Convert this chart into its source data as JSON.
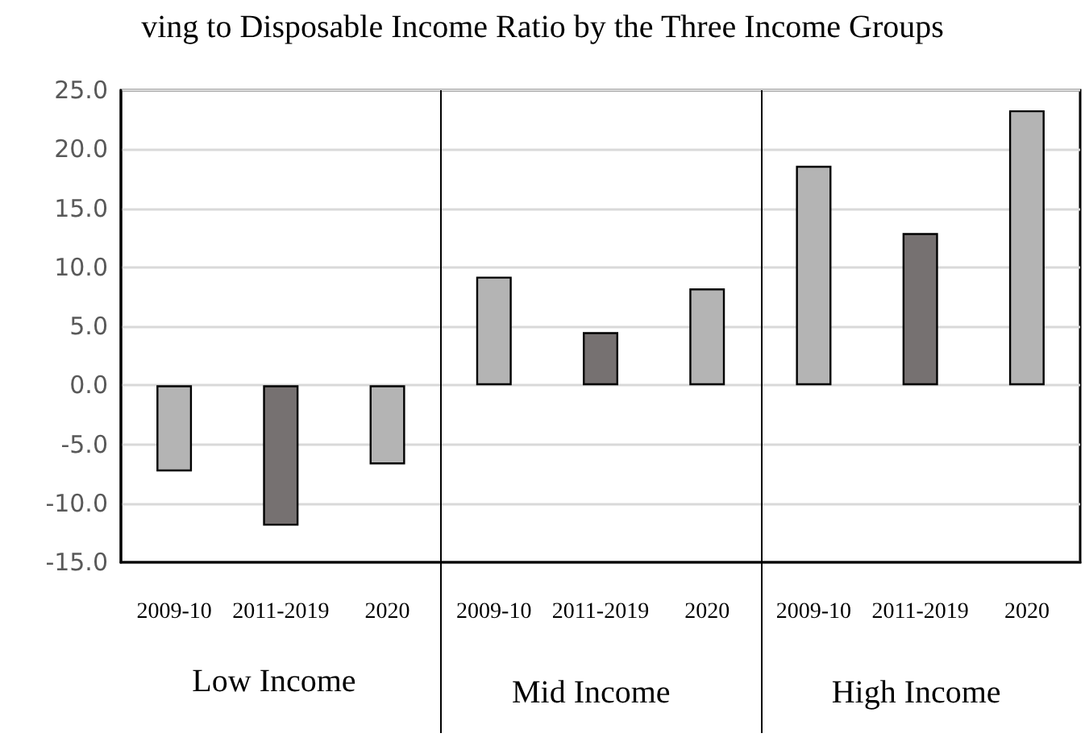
{
  "chart_data": {
    "type": "bar",
    "title": "ving to Disposable Income Ratio by the Three Income Groups",
    "categories": [
      "2009-10",
      "2011-2019",
      "2020",
      "2009-10",
      "2011-2019",
      "2020",
      "2009-10",
      "2011-2019",
      "2020"
    ],
    "values": [
      -7.3,
      -11.9,
      -6.7,
      9.2,
      4.5,
      8.2,
      18.6,
      12.9,
      23.3
    ],
    "colors": [
      "#b4b4b4",
      "#767171",
      "#b4b4b4",
      "#b4b4b4",
      "#767171",
      "#b4b4b4",
      "#b4b4b4",
      "#767171",
      "#b4b4b4"
    ],
    "ylim": [
      -15,
      25
    ],
    "yticks": [
      {
        "value": -15,
        "label": "-15.0"
      },
      {
        "value": -10,
        "label": "-10.0"
      },
      {
        "value": -5,
        "label": "-5.0"
      },
      {
        "value": 0,
        "label": "0.0"
      },
      {
        "value": 5,
        "label": "5.0"
      },
      {
        "value": 10,
        "label": "10.0"
      },
      {
        "value": 15,
        "label": "15.0"
      },
      {
        "value": 20,
        "label": "20.0"
      },
      {
        "value": 25,
        "label": "25.0"
      }
    ],
    "grid": "y",
    "annotations": [
      "Low Income",
      "Mid Income",
      "High Income"
    ]
  }
}
